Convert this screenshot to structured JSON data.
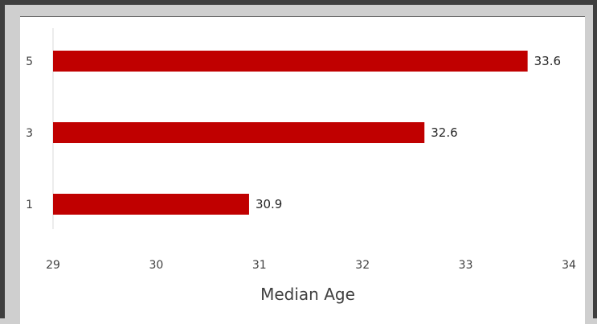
{
  "chart_data": {
    "type": "bar",
    "orientation": "horizontal",
    "categories": [
      "5",
      "3",
      "1"
    ],
    "values": [
      33.6,
      32.6,
      30.9
    ],
    "data_labels": [
      "33.6",
      "32.6",
      "30.9"
    ],
    "title": "",
    "xlabel": "Median Age",
    "ylabel": "",
    "xlim": [
      29,
      34
    ],
    "xticks": [
      "29",
      "30",
      "31",
      "32",
      "33",
      "34"
    ],
    "grid": false,
    "legend": "none",
    "bar_color": "#c00000"
  }
}
